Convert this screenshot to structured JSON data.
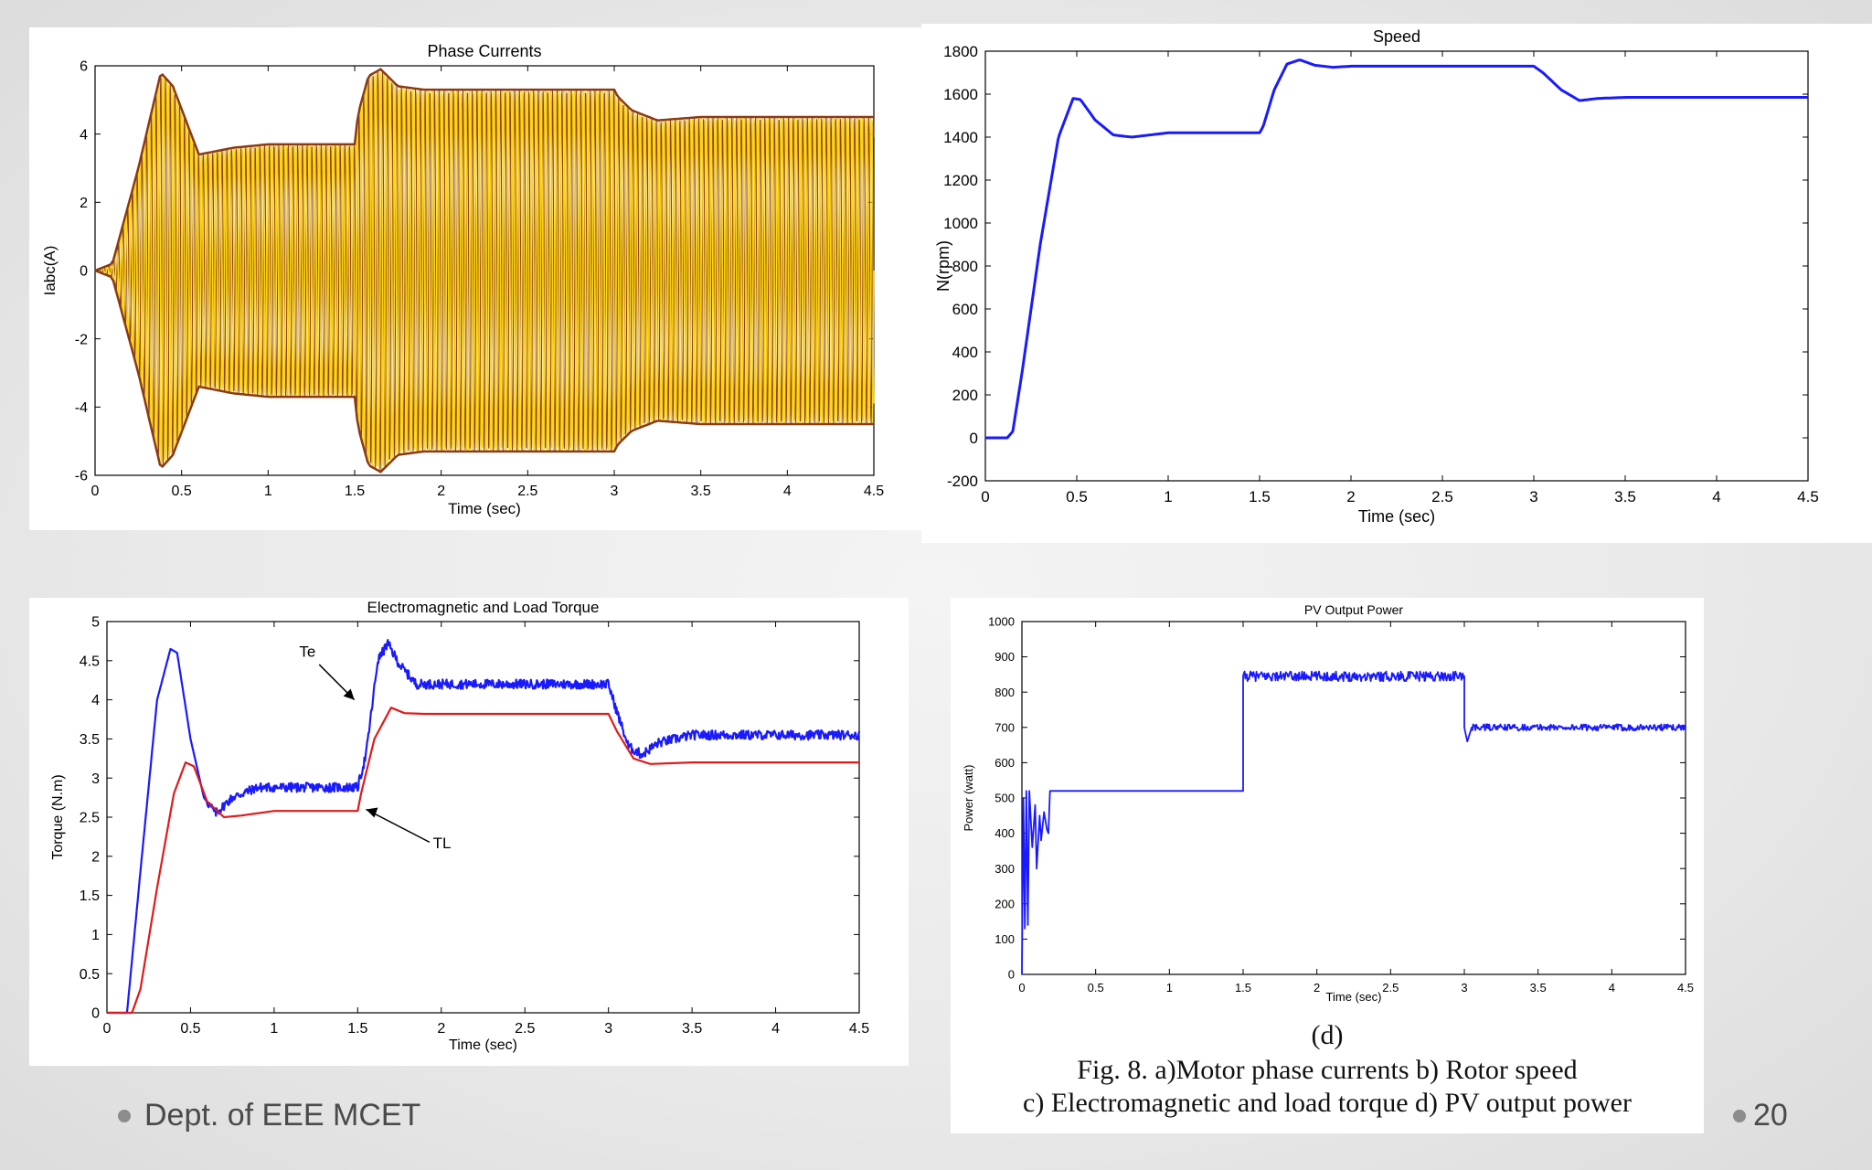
{
  "slide": {
    "footer_text": "Dept. of EEE MCET",
    "page_number": "20",
    "sub_label": "(d)",
    "caption_line1": "Fig. 8. a)Motor phase currents b) Rotor speed",
    "caption_line2": "c) Electromagnetic and load torque d) PV output power"
  },
  "chart_data": [
    {
      "id": "phase-currents",
      "type": "line",
      "title": "Phase Currents",
      "xlabel": "Time (sec)",
      "ylabel": "Iabc(A)",
      "xlim": [
        0,
        4.5
      ],
      "ylim": [
        -6,
        6
      ],
      "xticks": [
        0,
        0.5,
        1,
        1.5,
        2,
        2.5,
        3,
        3.5,
        4,
        4.5
      ],
      "xtick_labels": [
        "0",
        "0.5",
        "1",
        "1.5",
        "2",
        "2.5",
        "3",
        "3.5",
        "4",
        "4.5"
      ],
      "yticks": [
        -6,
        -4,
        -2,
        0,
        2,
        4,
        6
      ],
      "ytick_labels": [
        "-6",
        "-4",
        "-2",
        "0",
        "2",
        "4",
        "6"
      ],
      "series_colors": [
        "#f2d21b",
        "#8b3a12",
        "#ffd400"
      ],
      "envelope": {
        "t": [
          0,
          0.1,
          0.25,
          0.38,
          0.45,
          0.6,
          0.8,
          1.0,
          1.5,
          1.52,
          1.58,
          1.65,
          1.75,
          1.9,
          2.2,
          3.0,
          3.02,
          3.1,
          3.25,
          3.5,
          4.5
        ],
        "amplitude": [
          0,
          0.2,
          3.0,
          5.8,
          5.4,
          3.4,
          3.6,
          3.7,
          3.7,
          4.6,
          5.7,
          5.9,
          5.4,
          5.3,
          5.3,
          5.3,
          5.1,
          4.7,
          4.4,
          4.5,
          4.5
        ]
      },
      "cycles": 165
    },
    {
      "id": "speed",
      "type": "line",
      "title": "Speed",
      "xlabel": "Time (sec)",
      "ylabel": "N(rpm)",
      "xlim": [
        0,
        4.5
      ],
      "ylim": [
        -200,
        1800
      ],
      "xticks": [
        0,
        0.5,
        1,
        1.5,
        2,
        2.5,
        3,
        3.5,
        4,
        4.5
      ],
      "xtick_labels": [
        "0",
        "0.5",
        "1",
        "1.5",
        "2",
        "2.5",
        "3",
        "3.5",
        "4",
        "4.5"
      ],
      "yticks": [
        -200,
        0,
        200,
        400,
        600,
        800,
        1000,
        1200,
        1400,
        1600,
        1800
      ],
      "ytick_labels": [
        "-200",
        "0",
        "200",
        "400",
        "600",
        "800",
        "1000",
        "1200",
        "1400",
        "1600",
        "1800"
      ],
      "series": [
        {
          "name": "Speed",
          "color": "#1a1aff",
          "x": [
            0,
            0.12,
            0.15,
            0.2,
            0.3,
            0.4,
            0.48,
            0.52,
            0.6,
            0.7,
            0.8,
            1.0,
            1.2,
            1.5,
            1.52,
            1.58,
            1.65,
            1.72,
            1.8,
            1.9,
            2.0,
            2.5,
            3.0,
            3.05,
            3.15,
            3.25,
            3.35,
            3.5,
            4.5
          ],
          "y": [
            0,
            0,
            30,
            300,
            900,
            1400,
            1580,
            1575,
            1480,
            1410,
            1400,
            1420,
            1420,
            1420,
            1450,
            1620,
            1740,
            1760,
            1735,
            1725,
            1730,
            1730,
            1730,
            1700,
            1620,
            1570,
            1580,
            1585,
            1585
          ]
        }
      ]
    },
    {
      "id": "torque",
      "type": "line",
      "title": "Electromagnetic and Load Torque",
      "xlabel": "Time (sec)",
      "ylabel": "Torque (N.m)",
      "xlim": [
        0,
        4.5
      ],
      "ylim": [
        0,
        5
      ],
      "xticks": [
        0,
        0.5,
        1,
        1.5,
        2,
        2.5,
        3,
        3.5,
        4,
        4.5
      ],
      "xtick_labels": [
        "0",
        "0.5",
        "1",
        "1.5",
        "2",
        "2.5",
        "3",
        "3.5",
        "4",
        "4.5"
      ],
      "yticks": [
        0,
        0.5,
        1,
        1.5,
        2,
        2.5,
        3,
        3.5,
        4,
        4.5,
        5
      ],
      "ytick_labels": [
        "0",
        "0.5",
        "1",
        "1.5",
        "2",
        "2.5",
        "3",
        "3.5",
        "4",
        "4.5",
        "5"
      ],
      "series": [
        {
          "name": "Te",
          "color": "#1a1aff",
          "x": [
            0,
            0.12,
            0.2,
            0.3,
            0.38,
            0.42,
            0.5,
            0.58,
            0.65,
            0.75,
            0.9,
            1.0,
            1.5,
            1.55,
            1.62,
            1.68,
            1.75,
            1.85,
            2.0,
            3.0,
            3.05,
            3.12,
            3.2,
            3.3,
            3.5,
            4.5
          ],
          "y": [
            0,
            0,
            1.8,
            4.0,
            4.65,
            4.6,
            3.5,
            2.75,
            2.55,
            2.75,
            2.88,
            2.88,
            2.88,
            3.3,
            4.5,
            4.72,
            4.45,
            4.2,
            4.2,
            4.2,
            3.85,
            3.4,
            3.3,
            3.45,
            3.55,
            3.55
          ],
          "noise": 0.06
        },
        {
          "name": "TL",
          "color": "#e01a1a",
          "x": [
            0,
            0.15,
            0.2,
            0.3,
            0.4,
            0.47,
            0.52,
            0.6,
            0.7,
            0.8,
            1.0,
            1.5,
            1.52,
            1.6,
            1.7,
            1.78,
            1.9,
            3.0,
            3.05,
            3.15,
            3.25,
            3.5,
            4.5
          ],
          "y": [
            0,
            0,
            0.3,
            1.6,
            2.8,
            3.2,
            3.15,
            2.7,
            2.5,
            2.52,
            2.58,
            2.58,
            2.8,
            3.5,
            3.9,
            3.83,
            3.82,
            3.82,
            3.6,
            3.25,
            3.18,
            3.2,
            3.2
          ]
        }
      ],
      "annotations": [
        {
          "text": "Te",
          "x": 1.48,
          "y": 4.0
        },
        {
          "text": "TL",
          "x": 1.55,
          "y": 2.6
        }
      ]
    },
    {
      "id": "pv-power",
      "type": "line",
      "title": "PV Output Power",
      "xlabel": "Time (sec)",
      "ylabel": "Power (watt)",
      "xlim": [
        0,
        4.5
      ],
      "ylim": [
        0,
        1000
      ],
      "xticks": [
        0,
        0.5,
        1,
        1.5,
        2,
        2.5,
        3,
        3.5,
        4,
        4.5
      ],
      "xtick_labels": [
        "0",
        "0.5",
        "1",
        "1.5",
        "2",
        "2.5",
        "3",
        "3.5",
        "4",
        "4.5"
      ],
      "yticks": [
        0,
        100,
        200,
        300,
        400,
        500,
        600,
        700,
        800,
        900,
        1000
      ],
      "ytick_labels": [
        "0",
        "100",
        "200",
        "300",
        "400",
        "500",
        "600",
        "700",
        "800",
        "900",
        "1000"
      ],
      "series": [
        {
          "name": "PV Power",
          "color": "#1a1aff",
          "x": [
            0,
            0.01,
            0.02,
            0.03,
            0.04,
            0.05,
            0.07,
            0.09,
            0.1,
            0.12,
            0.13,
            0.15,
            0.17,
            0.18,
            0.19,
            0.2,
            1.5,
            1.5,
            3.0,
            3.0,
            3.02,
            3.05,
            4.5
          ],
          "y": [
            0,
            500,
            130,
            520,
            140,
            520,
            360,
            480,
            300,
            450,
            380,
            460,
            410,
            400,
            520,
            520,
            520,
            845,
            845,
            700,
            660,
            700,
            700
          ],
          "noise_segments": [
            {
              "x0": 1.5,
              "x1": 3.0,
              "amp": 14
            },
            {
              "x0": 3.05,
              "x1": 4.5,
              "amp": 9
            }
          ]
        }
      ]
    }
  ]
}
